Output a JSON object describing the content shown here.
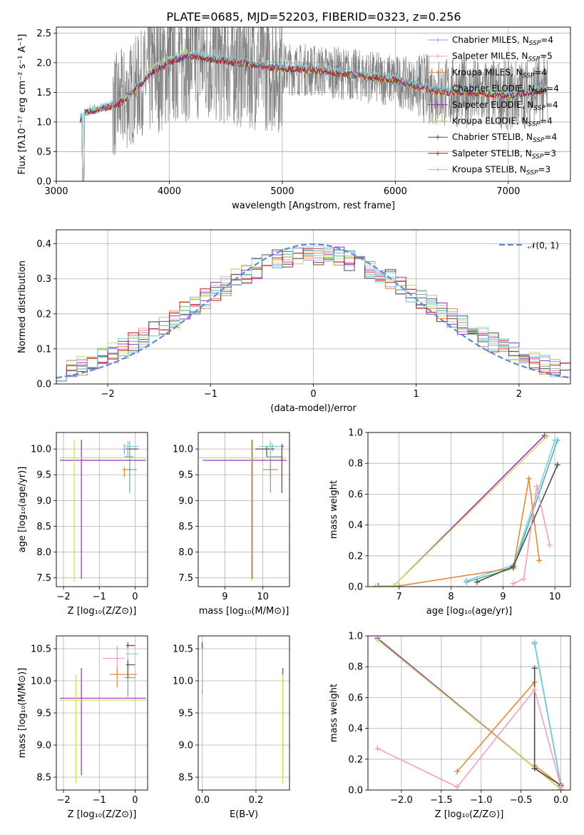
{
  "figure_title": "PLATE=0685, MJD=52203, FIBERID=0323, z=0.256",
  "legend": [
    {
      "name": "Chabrier MILES, N",
      "sub": "SSP",
      "tail": "=4",
      "color": "#8fa0d8"
    },
    {
      "name": "Salpeter MILES, N",
      "sub": "SSP",
      "tail": "=5",
      "color": "#f0a0c0"
    },
    {
      "name": "Kroupa MILES, N",
      "sub": "SSP",
      "tail": "=4",
      "color": "#e08a3a"
    },
    {
      "name": "Chabrier ELODIE, N",
      "sub": "SSP",
      "tail": "=4",
      "color": "#5ab0a0"
    },
    {
      "name": "Salpeter ELODIE, N",
      "sub": "SSP",
      "tail": "=4",
      "color": "#9b30c0"
    },
    {
      "name": "Kroupa ELODIE, N",
      "sub": "SSP",
      "tail": "=4",
      "color": "#c8e060"
    },
    {
      "name": "Chabrier STELIB, N",
      "sub": "SSP",
      "tail": "=4",
      "color": "#505050"
    },
    {
      "name": "Salpeter STELIB, N",
      "sub": "SSP",
      "tail": "=3",
      "color": "#c01818"
    },
    {
      "name": "Kroupa STELIB, N",
      "sub": "SSP",
      "tail": "=3",
      "color": "#80d0e0"
    }
  ],
  "chart_data": [
    {
      "id": "spectrum",
      "type": "line",
      "xlabel": "wavelength [Angstrom, rest frame]",
      "ylabel": "Flux [fλ10⁻¹⁷ erg cm⁻² s⁻¹ A⁻¹]",
      "xlim": [
        3000,
        7550
      ],
      "ylim": [
        0,
        2.6
      ],
      "xticks": [
        3000,
        4000,
        5000,
        6000,
        7000
      ],
      "yticks": [
        0.0,
        0.5,
        1.0,
        1.5,
        2.0,
        2.5
      ],
      "data_color": "#808080",
      "model_continuum": {
        "x": [
          3210,
          3250,
          3350,
          3450,
          3550,
          3650,
          3750,
          3850,
          3950,
          4050,
          4150,
          4250,
          4400,
          4600,
          4800,
          5000,
          5200,
          5400,
          5600,
          5800,
          6000,
          6200,
          6400,
          6600,
          6800,
          7000,
          7200,
          7350
        ],
        "y": [
          1.05,
          1.15,
          1.2,
          1.25,
          1.3,
          1.45,
          1.65,
          1.85,
          1.95,
          2.05,
          2.1,
          2.1,
          2.05,
          2.0,
          1.95,
          1.9,
          1.88,
          1.85,
          1.8,
          1.75,
          1.7,
          1.6,
          1.5,
          1.5,
          1.48,
          1.45,
          1.5,
          1.55
        ]
      }
    },
    {
      "id": "residuals",
      "type": "step",
      "xlabel": "(data-model)/error",
      "ylabel": "Normed distribution",
      "xlim": [
        -2.5,
        2.5
      ],
      "ylim": [
        0,
        0.44
      ],
      "xticks": [
        -2,
        -1,
        0,
        1,
        2
      ],
      "yticks": [
        0.0,
        0.1,
        0.2,
        0.3,
        0.4
      ],
      "bin_edges_start": -2.5,
      "bin_width": 0.1,
      "reference": {
        "name": "𝒩(0, 1)",
        "mu": 0,
        "sigma": 1,
        "color": "#5b8bd8"
      }
    },
    {
      "id": "age-vs-Z",
      "type": "errorbar",
      "xlabel": "Z [log₁₀(Z/Z⊙)]",
      "ylabel": "age  [log₁₀(age/yr)]",
      "xlim": [
        -2.2,
        0.35
      ],
      "ylim": [
        7.33,
        10.32
      ],
      "xticks": [
        -2,
        -1,
        0
      ],
      "yticks": [
        7.5,
        8.0,
        8.5,
        9.0,
        9.5,
        10.0
      ],
      "points": [
        {
          "series": 0,
          "x": -0.3,
          "xerr": [
            0.05,
            0.1
          ],
          "y": 10.0,
          "yerr": [
            0.1,
            0.1
          ]
        },
        {
          "series": 2,
          "x": -0.3,
          "xerr": [
            0.05,
            0.35
          ],
          "y": 9.6,
          "yerr": [
            0.15,
            0.05
          ]
        },
        {
          "series": 3,
          "x": -0.15,
          "xerr": [
            0.15,
            0.1
          ],
          "y": 9.85,
          "yerr": [
            0.7,
            0.3
          ]
        },
        {
          "series": 4,
          "x": -1.5,
          "xerr": [
            0.6,
            1.8
          ],
          "y": 9.78,
          "yerr": [
            2.3,
            0.4
          ]
        },
        {
          "series": 5,
          "x": -1.7,
          "xerr": [
            0.4,
            2.0
          ],
          "y": 9.83,
          "yerr": [
            2.4,
            0.35
          ]
        },
        {
          "series": 6,
          "x": -0.2,
          "xerr": [
            0.05,
            0.3
          ],
          "y": 10.0,
          "yerr": [
            0.15,
            0.05
          ]
        },
        {
          "series": 8,
          "x": -0.2,
          "xerr": [
            0.1,
            0.3
          ],
          "y": 10.05,
          "yerr": [
            0.2,
            0.1
          ]
        }
      ]
    },
    {
      "id": "age-vs-mass",
      "type": "errorbar",
      "xlabel": "mass [log₁₀(M/M⊙)]",
      "ylabel": "",
      "xlim": [
        8.3,
        10.7
      ],
      "ylim": [
        7.33,
        10.32
      ],
      "xticks": [
        9,
        10
      ],
      "yticks": [
        7.5,
        8.0,
        8.5,
        9.0,
        9.5,
        10.0
      ],
      "points": [
        {
          "series": 0,
          "x": 10.25,
          "xerr": [
            0.15,
            0.15
          ],
          "y": 10.05,
          "yerr": [
            0.1,
            0.05
          ]
        },
        {
          "series": 2,
          "x": 10.2,
          "xerr": [
            0.2,
            0.2
          ],
          "y": 9.6,
          "yerr": [
            0.15,
            0.1
          ]
        },
        {
          "series": 3,
          "x": 10.2,
          "xerr": [
            0.1,
            0.3
          ],
          "y": 9.85,
          "yerr": [
            0.7,
            0.3
          ]
        },
        {
          "series": 4,
          "x": 9.72,
          "xerr": [
            1.3,
            0.9
          ],
          "y": 9.78,
          "yerr": [
            2.3,
            0.4
          ]
        },
        {
          "series": 5,
          "x": 9.7,
          "xerr": [
            1.4,
            0.9
          ],
          "y": 9.83,
          "yerr": [
            2.4,
            0.35
          ]
        },
        {
          "series": 6,
          "x": 10.1,
          "xerr": [
            0.3,
            0.2
          ],
          "y": 10.0,
          "yerr": [
            0.15,
            0.05
          ]
        },
        {
          "series": 7,
          "x": 10.5,
          "xerr": [
            0.1,
            0.05
          ],
          "y": 10.05,
          "yerr": [
            0.9,
            0.05
          ]
        },
        {
          "series": 8,
          "x": 10.2,
          "xerr": [
            0.3,
            0.3
          ],
          "y": 10.05,
          "yerr": [
            0.2,
            0.1
          ]
        }
      ]
    },
    {
      "id": "weight-vs-age",
      "type": "line",
      "xlabel": "age  [log₁₀(age/yr)]",
      "ylabel": "mass weight",
      "xlim": [
        6.4,
        10.3
      ],
      "ylim": [
        0,
        1.0
      ],
      "xticks": [
        7,
        8,
        9,
        10
      ],
      "yticks": [
        0.0,
        0.2,
        0.4,
        0.6,
        0.8,
        1.0
      ],
      "series": [
        {
          "series": 4,
          "x": [
            6.6,
            6.9,
            9.8
          ],
          "y": [
            0.005,
            0.005,
            0.98
          ]
        },
        {
          "series": 5,
          "x": [
            6.55,
            6.9,
            9.85
          ],
          "y": [
            0.005,
            0.005,
            0.975
          ]
        },
        {
          "series": 3,
          "x": [
            8.3,
            9.2,
            10.05
          ],
          "y": [
            0.03,
            0.12,
            0.95
          ]
        },
        {
          "series": 8,
          "x": [
            8.3,
            9.2,
            10.0
          ],
          "y": [
            0.04,
            0.14,
            0.95
          ]
        },
        {
          "series": 2,
          "x": [
            7.0,
            9.2,
            9.5,
            9.7
          ],
          "y": [
            0.005,
            0.12,
            0.7,
            0.17
          ]
        },
        {
          "series": 6,
          "x": [
            8.5,
            9.2,
            10.05
          ],
          "y": [
            0.03,
            0.13,
            0.79
          ]
        },
        {
          "series": 1,
          "x": [
            9.2,
            9.4,
            9.65,
            9.9
          ],
          "y": [
            0.02,
            0.05,
            0.65,
            0.27
          ]
        }
      ]
    },
    {
      "id": "mass-vs-Z",
      "type": "errorbar",
      "xlabel": "Z [log₁₀(Z/Z⊙)]",
      "ylabel": "mass [log₁₀(M/M⊙)]",
      "xlim": [
        -2.2,
        0.35
      ],
      "ylim": [
        8.3,
        10.7
      ],
      "xticks": [
        -2,
        -1,
        0
      ],
      "yticks": [
        8.5,
        9.0,
        9.5,
        10.0,
        10.5
      ],
      "points": [
        {
          "series": 1,
          "x": -0.5,
          "xerr": [
            0.4,
            0.2
          ],
          "y": 10.35,
          "yerr": [
            0.2,
            0.2
          ]
        },
        {
          "series": 2,
          "x": -0.5,
          "xerr": [
            0.2,
            0.55
          ],
          "y": 10.1,
          "yerr": [
            0.2,
            0.1
          ]
        },
        {
          "series": 3,
          "x": -0.2,
          "xerr": [
            0.1,
            0.2
          ],
          "y": 10.05,
          "yerr": [
            0.3,
            0.3
          ]
        },
        {
          "series": 4,
          "x": -1.5,
          "xerr": [
            0.6,
            1.8
          ],
          "y": 9.73,
          "yerr": [
            1.2,
            0.47
          ]
        },
        {
          "series": 5,
          "x": -1.65,
          "xerr": [
            0.45,
            2.0
          ],
          "y": 9.7,
          "yerr": [
            1.3,
            0.4
          ]
        },
        {
          "series": 6,
          "x": -0.2,
          "xerr": [
            0.05,
            0.2
          ],
          "y": 10.25,
          "yerr": [
            0.2,
            0.1
          ]
        },
        {
          "series": 7,
          "x": -0.2,
          "xerr": [
            0.05,
            0.2
          ],
          "y": 10.55,
          "yerr": [
            0.05,
            0.05
          ]
        },
        {
          "series": 8,
          "x": -0.2,
          "xerr": [
            0.05,
            0.3
          ],
          "y": 10.42,
          "yerr": [
            0.1,
            0.1
          ]
        }
      ]
    },
    {
      "id": "mass-vs-EBV",
      "type": "errorbar",
      "xlabel": "E(B-V)",
      "ylabel": "",
      "xlim": [
        -0.015,
        0.325
      ],
      "ylim": [
        8.3,
        10.7
      ],
      "xticks": [
        0.0,
        0.2
      ],
      "yticks": [
        8.5,
        9.0,
        9.5,
        10.0,
        10.5
      ],
      "points": [
        {
          "series": 3,
          "x": 0.0,
          "xerr": [
            0,
            0
          ],
          "y": 10.2,
          "yerr": [
            0.4,
            0.3
          ]
        },
        {
          "series": 8,
          "x": 0.0,
          "xerr": [
            0,
            0
          ],
          "y": 10.2,
          "yerr": [
            0.35,
            0.3
          ]
        },
        {
          "series": 7,
          "x": 0.0,
          "xerr": [
            0,
            0
          ],
          "y": 10.55,
          "yerr": [
            0.05,
            0.05
          ]
        },
        {
          "series": 4,
          "x": 0.3,
          "xerr": [
            0,
            0
          ],
          "y": 9.75,
          "yerr": [
            1.2,
            0.45
          ]
        },
        {
          "series": 5,
          "x": 0.3,
          "xerr": [
            0,
            0
          ],
          "y": 9.7,
          "yerr": [
            1.3,
            0.4
          ]
        }
      ]
    },
    {
      "id": "weight-vs-Z",
      "type": "line",
      "xlabel": "Z [log₁₀(Z/Z⊙)]",
      "ylabel": "mass weight",
      "xlim": [
        -2.42,
        0.12
      ],
      "ylim": [
        0,
        1.0
      ],
      "xticks": [
        -2.0,
        -1.5,
        -1.0,
        -0.5,
        0.0
      ],
      "yticks": [
        0.0,
        0.2,
        0.4,
        0.6,
        0.8,
        1.0
      ],
      "series": [
        {
          "series": 4,
          "x": [
            -2.3,
            0.0
          ],
          "y": [
            0.985,
            0.005
          ]
        },
        {
          "series": 5,
          "x": [
            -2.3,
            0.0
          ],
          "y": [
            0.975,
            0.005
          ]
        },
        {
          "series": 3,
          "x": [
            -0.33,
            0.0
          ],
          "y": [
            0.95,
            0.03
          ]
        },
        {
          "series": 8,
          "x": [
            -0.33,
            0.0
          ],
          "y": [
            0.96,
            0.04
          ]
        },
        {
          "series": 2,
          "x": [
            -1.3,
            -0.33,
            -0.33,
            0.0
          ],
          "y": [
            0.12,
            0.7,
            0.16,
            0.03
          ]
        },
        {
          "series": 6,
          "x": [
            -0.33,
            -0.33,
            0.0
          ],
          "y": [
            0.79,
            0.14,
            0.03
          ]
        },
        {
          "series": 1,
          "x": [
            -2.3,
            -1.3,
            -0.33,
            0.0
          ],
          "y": [
            0.27,
            0.02,
            0.65,
            0.02
          ]
        }
      ]
    }
  ]
}
